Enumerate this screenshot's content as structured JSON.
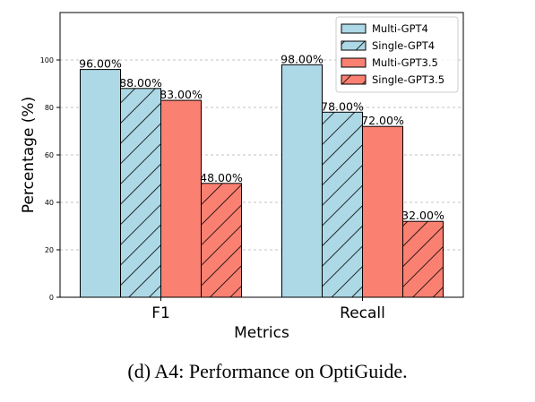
{
  "caption": "(d) A4: Performance on OptiGuide.",
  "chart_data": {
    "type": "bar",
    "title": "",
    "xlabel": "Metrics",
    "ylabel": "Percentage (%)",
    "ylim": [
      0,
      120
    ],
    "yticks": [
      0,
      20,
      40,
      60,
      80,
      100
    ],
    "grid": true,
    "legend_position": "top-right",
    "categories": [
      "F1",
      "Recall"
    ],
    "series": [
      {
        "name": "Multi-GPT4",
        "values": [
          96.0,
          98.0
        ],
        "labels": [
          "96.00%",
          "98.00%"
        ],
        "color": "#add8e6",
        "hatch": false
      },
      {
        "name": "Single-GPT4",
        "values": [
          88.0,
          78.0
        ],
        "labels": [
          "88.00%",
          "78.00%"
        ],
        "color": "#add8e6",
        "hatch": true
      },
      {
        "name": "Multi-GPT3.5",
        "values": [
          83.0,
          72.0
        ],
        "labels": [
          "83.00%",
          "72.00%"
        ],
        "color": "#fa8072",
        "hatch": false
      },
      {
        "name": "Single-GPT3.5",
        "values": [
          48.0,
          32.0
        ],
        "labels": [
          "48.00%",
          "32.00%"
        ],
        "color": "#fa8072",
        "hatch": true
      }
    ]
  }
}
